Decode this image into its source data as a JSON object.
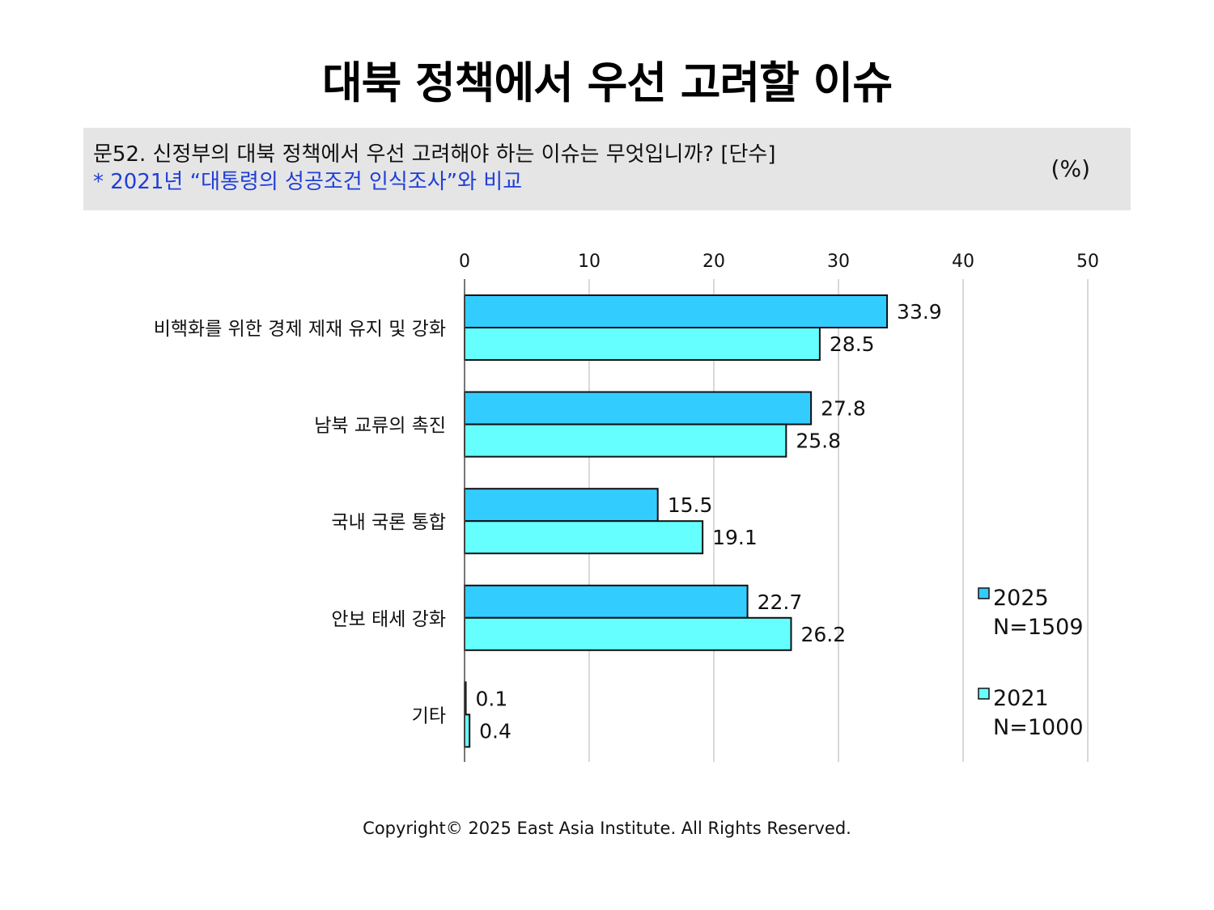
{
  "title": "대북 정책에서 우선 고려할 이슈",
  "question": {
    "text": "문52. 신정부의 대북 정책에서 우선 고려해야 하는 이슈는 무엇입니까? [단수]",
    "note": "* 2021년 “대통령의 성공조건 인식조사”와 비교",
    "unit": "(%)"
  },
  "footer": "Copyright© 2025 East Asia Institute. All Rights Reserved.",
  "colors": {
    "series_2025": "#33ccff",
    "series_2021": "#66ffff",
    "grid": "#d9d9d9",
    "bar_stroke": "#111111"
  },
  "chart_data": {
    "type": "bar",
    "orientation": "horizontal",
    "categories": [
      "비핵화를 위한 경제 제재 유지 및 강화",
      "남북 교류의 촉진",
      "국내 국론 통합",
      "안보 태세 강화",
      "기타"
    ],
    "series": [
      {
        "name": "2025",
        "sample": "N=1509",
        "values": [
          33.9,
          27.8,
          15.5,
          22.7,
          0.1
        ]
      },
      {
        "name": "2021",
        "sample": "N=1000",
        "values": [
          28.5,
          25.8,
          19.1,
          26.2,
          0.4
        ]
      }
    ],
    "xlim": [
      0,
      50
    ],
    "xticks": [
      0,
      10,
      20,
      30,
      40,
      50
    ],
    "grid": true,
    "legend": "right"
  }
}
